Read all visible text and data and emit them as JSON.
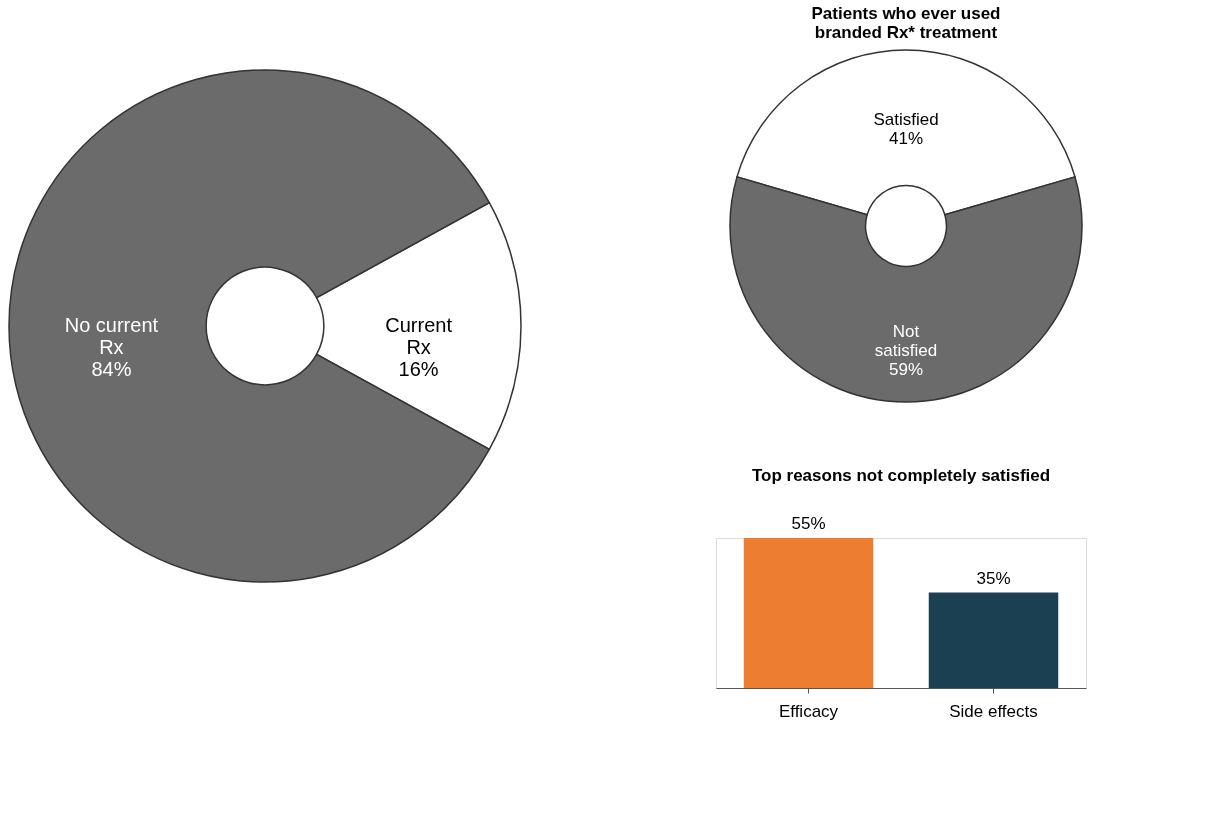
{
  "chart_data": [
    {
      "type": "donut",
      "categories": [
        "Current Rx",
        "No current Rx"
      ],
      "values": [
        16,
        84
      ],
      "colors": [
        "#ffffff",
        "#6b6b6b"
      ],
      "value_labels": [
        "16%",
        "84%"
      ]
    },
    {
      "type": "donut",
      "title": "Patients who ever used branded Rx* treatment",
      "categories": [
        "Satisfied",
        "Not satisfied"
      ],
      "values": [
        41,
        59
      ],
      "colors": [
        "#ffffff",
        "#6b6b6b"
      ],
      "value_labels": [
        "41%",
        "59%"
      ]
    },
    {
      "type": "bar",
      "title": "Top reasons not completely satisfied",
      "categories": [
        "Efficacy",
        "Side effects"
      ],
      "values": [
        55,
        35
      ],
      "colors": [
        "#ed7d31",
        "#1a4052"
      ],
      "value_labels": [
        "55%",
        "35%"
      ]
    }
  ]
}
